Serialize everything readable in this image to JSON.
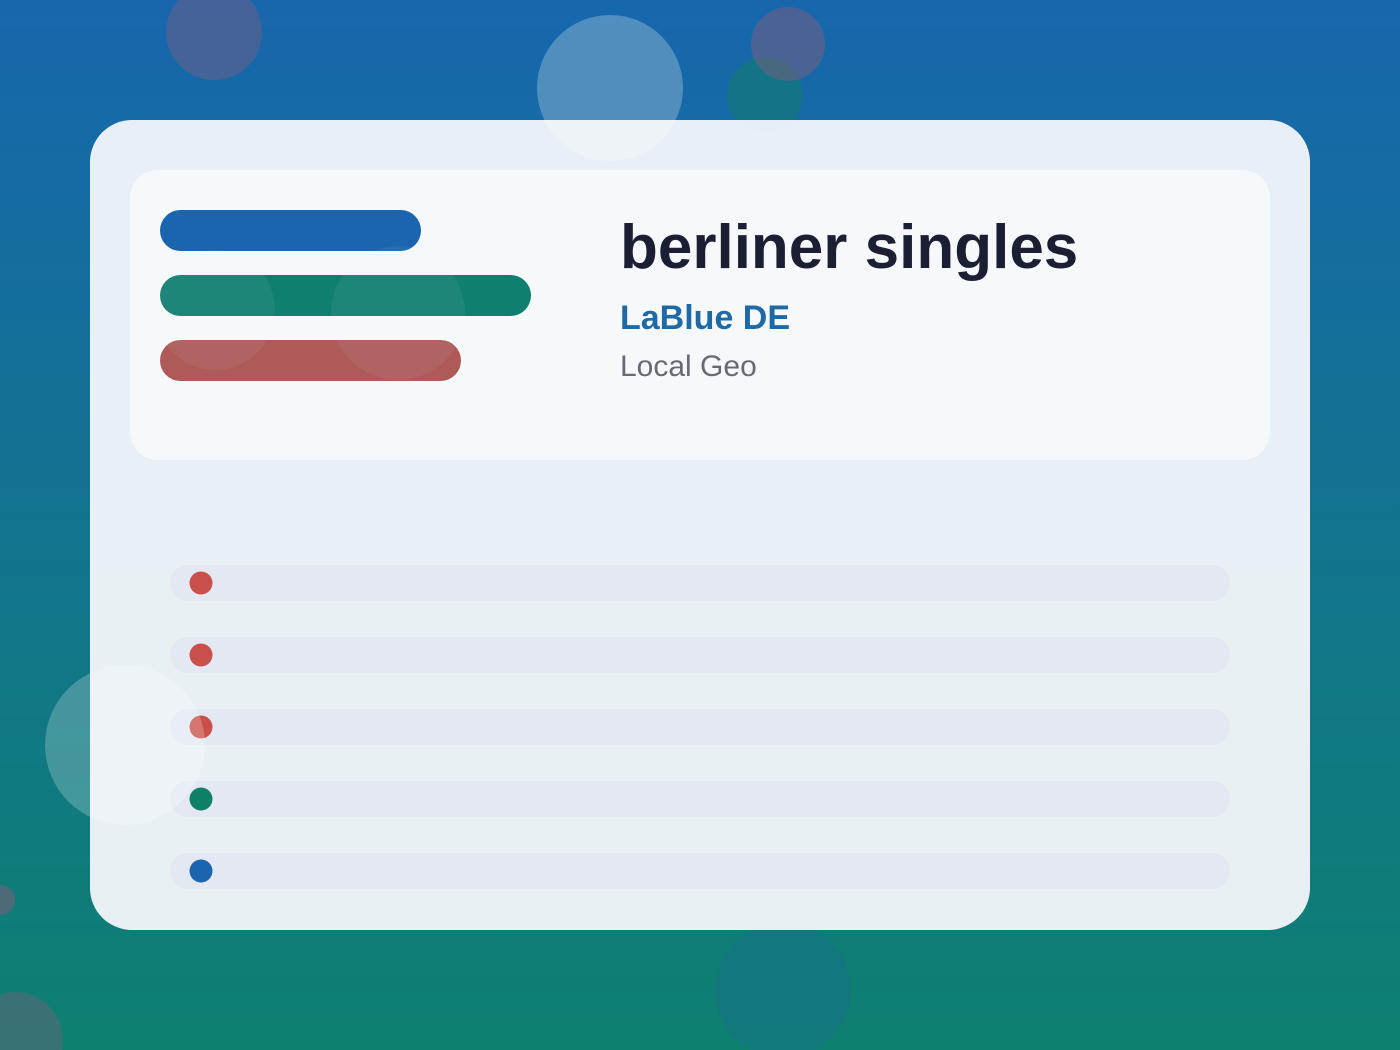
{
  "header": {
    "title": "berliner singles",
    "subtitle": "LaBlue DE",
    "tag": "Local Geo"
  }
}
